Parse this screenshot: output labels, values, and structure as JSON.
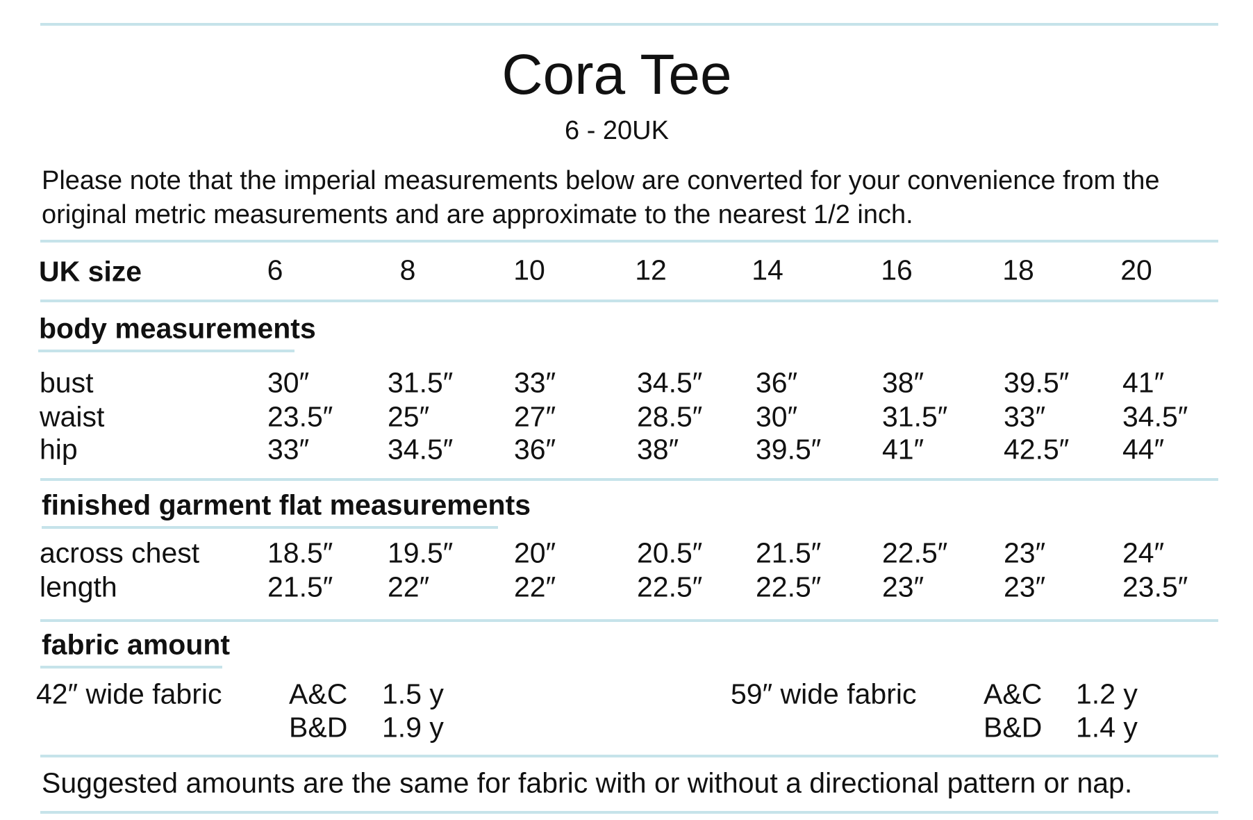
{
  "header": {
    "title": "Cora Tee",
    "subtitle": "6 - 20UK",
    "note": "Please note that the imperial measurements below are converted for your convenience from the original metric measurements and are approximate to the nearest 1/2 inch."
  },
  "size_row": {
    "label": "UK size",
    "sizes": [
      "6",
      "8",
      "10",
      "12",
      "14",
      "16",
      "18",
      "20"
    ]
  },
  "sections": [
    {
      "heading": "body measurements",
      "rows": [
        {
          "label": "bust",
          "values": [
            "30″",
            "31.5″",
            "33″",
            "34.5″",
            "36″",
            "38″",
            "39.5″",
            "41″"
          ]
        },
        {
          "label": "waist",
          "values": [
            "23.5″",
            "25″",
            "27″",
            "28.5″",
            "30″",
            "31.5″",
            "33″",
            "34.5″"
          ]
        },
        {
          "label": "hip",
          "values": [
            "33″",
            "34.5″",
            "36″",
            "38″",
            "39.5″",
            "41″",
            "42.5″",
            "44″"
          ]
        }
      ]
    },
    {
      "heading": "finished garment flat measurements",
      "rows": [
        {
          "label": "across chest",
          "values": [
            "18.5″",
            "19.5″",
            "20″",
            "20.5″",
            "21.5″",
            "22.5″",
            "23″",
            "24″"
          ]
        },
        {
          "label": "length",
          "values": [
            "21.5″",
            "22″",
            "22″",
            "22.5″",
            "22.5″",
            "23″",
            "23″",
            "23.5″"
          ]
        }
      ]
    }
  ],
  "fabric": {
    "heading": "fabric amount",
    "groups": [
      {
        "width": "42″ wide fabric",
        "rows": [
          {
            "view": "A&C",
            "amount": "1.5 y"
          },
          {
            "view": "B&D",
            "amount": "1.9 y"
          }
        ]
      },
      {
        "width": "59″ wide fabric",
        "rows": [
          {
            "view": "A&C",
            "amount": "1.2 y"
          },
          {
            "view": "B&D",
            "amount": "1.4 y"
          }
        ]
      }
    ]
  },
  "footer": "Suggested amounts are the same for fabric with or without a directional pattern or nap."
}
